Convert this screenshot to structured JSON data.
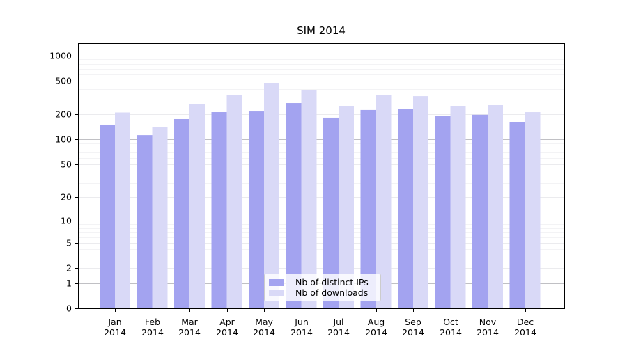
{
  "chart_data": {
    "type": "bar",
    "title": "SIM 2014",
    "categories": [
      "Jan",
      "Feb",
      "Mar",
      "Apr",
      "May",
      "Jun",
      "Jul",
      "Aug",
      "Sep",
      "Oct",
      "Nov",
      "Dec"
    ],
    "year_label": "2014",
    "series": [
      {
        "name": "Nb of distinct IPs",
        "color": "#a3a3f0",
        "values": [
          151,
          113,
          176,
          213,
          217,
          273,
          183,
          226,
          234,
          190,
          198,
          160
        ]
      },
      {
        "name": "Nb of downloads",
        "color": "#d9d9f7",
        "values": [
          211,
          142,
          268,
          337,
          475,
          387,
          253,
          337,
          330,
          250,
          258,
          213
        ]
      }
    ],
    "yscale": "log1p",
    "ylim": [
      0,
      1400
    ],
    "yticks": [
      0,
      1,
      2,
      5,
      10,
      20,
      50,
      100,
      200,
      500,
      1000
    ],
    "decade_ticks": [
      1,
      10,
      100,
      1000
    ],
    "minor_yticks": [
      3,
      4,
      6,
      7,
      8,
      9,
      30,
      40,
      60,
      70,
      80,
      90,
      300,
      400,
      600,
      700,
      800,
      900
    ],
    "grid": "both",
    "legend_position": "lower center",
    "colors": {
      "axis": "#000000",
      "grid_decade": "#c0c0c4",
      "grid_labeled": "#ebebee",
      "grid_minor": "#f3f3f5",
      "legend_border": "#cccccc",
      "background": "#ffffff"
    }
  }
}
